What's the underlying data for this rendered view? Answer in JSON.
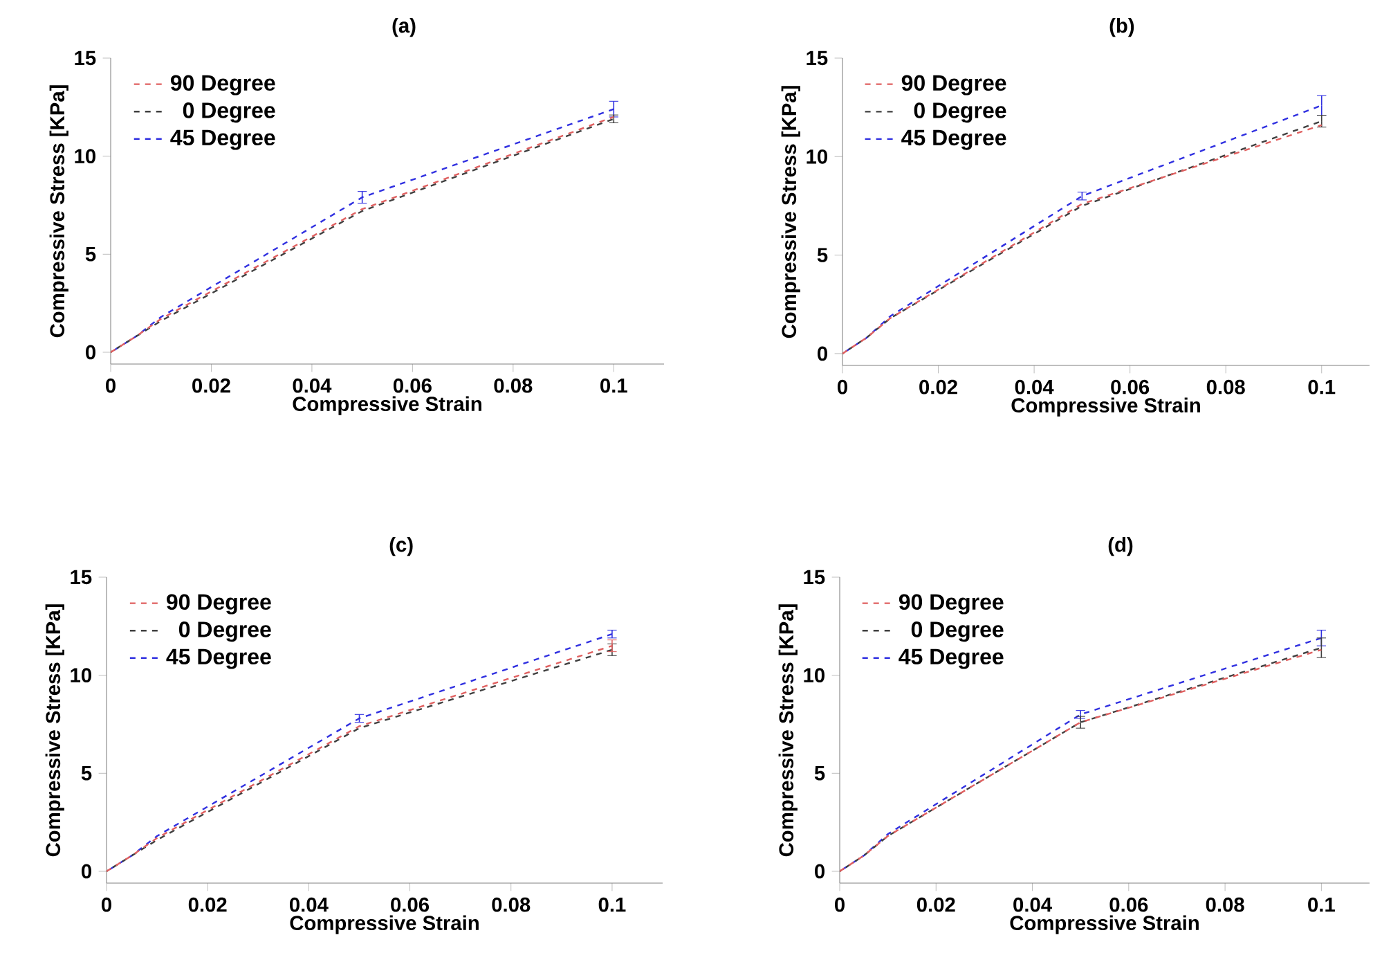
{
  "chart_data": [
    {
      "type": "line",
      "title": "(a)",
      "xlabel": "Compressive Strain",
      "ylabel": "Compressive Stress [KPa]",
      "x": [
        0,
        0.005,
        0.01,
        0.05,
        0.1
      ],
      "xlim": [
        0,
        0.11
      ],
      "xticks": [
        0,
        0.02,
        0.04,
        0.06,
        0.08,
        0.1
      ],
      "ylim": [
        -0.6,
        15
      ],
      "yticks": [
        0,
        5,
        10,
        15
      ],
      "legend": "top left",
      "line_style": "dashed",
      "marker": "none",
      "grid": false,
      "series": [
        {
          "name": "90 Degree",
          "color": "#e06060",
          "values": [
            0,
            0.8,
            1.7,
            7.3,
            12.0
          ]
        },
        {
          "name": "0 Degree",
          "color": "#404040",
          "values": [
            0,
            0.8,
            1.6,
            7.2,
            11.9
          ],
          "errors": [
            null,
            null,
            null,
            null,
            0.2
          ]
        },
        {
          "name": "45 Degree",
          "color": "#3030e0",
          "values": [
            0,
            0.8,
            1.8,
            7.9,
            12.4
          ],
          "errors": [
            null,
            null,
            null,
            0.3,
            0.4
          ]
        }
      ]
    },
    {
      "type": "line",
      "title": "(b)",
      "xlabel": "Compressive Strain",
      "ylabel": "Compressive Stress [KPa]",
      "x": [
        0,
        0.005,
        0.01,
        0.05,
        0.1
      ],
      "xlim": [
        0,
        0.11
      ],
      "xticks": [
        0,
        0.02,
        0.04,
        0.06,
        0.08,
        0.1
      ],
      "ylim": [
        -0.6,
        15
      ],
      "yticks": [
        0,
        5,
        10,
        15
      ],
      "legend": "top left",
      "line_style": "dashed",
      "marker": "none",
      "grid": false,
      "series": [
        {
          "name": "90 Degree",
          "color": "#e06060",
          "values": [
            0,
            0.8,
            1.8,
            7.6,
            11.6
          ]
        },
        {
          "name": "0 Degree",
          "color": "#404040",
          "values": [
            0,
            0.8,
            1.8,
            7.5,
            11.8
          ],
          "errors": [
            null,
            null,
            null,
            null,
            0.3
          ]
        },
        {
          "name": "45 Degree",
          "color": "#3030e0",
          "values": [
            0,
            0.8,
            1.9,
            8.0,
            12.6
          ],
          "errors": [
            null,
            null,
            null,
            0.2,
            0.5
          ]
        }
      ]
    },
    {
      "type": "line",
      "title": "(c)",
      "xlabel": "Compressive Strain",
      "ylabel": "Compressive Stress [KPa]",
      "x": [
        0,
        0.005,
        0.01,
        0.05,
        0.1
      ],
      "xlim": [
        0,
        0.11
      ],
      "xticks": [
        0,
        0.02,
        0.04,
        0.06,
        0.08,
        0.1
      ],
      "ylim": [
        -0.6,
        15
      ],
      "yticks": [
        0,
        5,
        10,
        15
      ],
      "legend": "top left",
      "line_style": "dashed",
      "marker": "none",
      "grid": false,
      "series": [
        {
          "name": "90 Degree",
          "color": "#e06060",
          "values": [
            0,
            0.8,
            1.7,
            7.4,
            11.5
          ],
          "errors": [
            null,
            null,
            null,
            null,
            0.3
          ]
        },
        {
          "name": "0 Degree",
          "color": "#404040",
          "values": [
            0,
            0.8,
            1.6,
            7.3,
            11.3
          ],
          "errors": [
            null,
            null,
            null,
            null,
            0.3
          ]
        },
        {
          "name": "45 Degree",
          "color": "#3030e0",
          "values": [
            0,
            0.8,
            1.8,
            7.8,
            12.1
          ],
          "errors": [
            null,
            null,
            null,
            0.2,
            0.2
          ]
        }
      ]
    },
    {
      "type": "line",
      "title": "(d)",
      "xlabel": "Compressive Strain",
      "ylabel": "Compressive Stress [KPa]",
      "x": [
        0,
        0.005,
        0.01,
        0.05,
        0.1
      ],
      "xlim": [
        0,
        0.11
      ],
      "xticks": [
        0,
        0.02,
        0.04,
        0.06,
        0.08,
        0.1
      ],
      "ylim": [
        -0.6,
        15
      ],
      "yticks": [
        0,
        5,
        10,
        15
      ],
      "legend": "top left",
      "line_style": "dashed",
      "marker": "none",
      "grid": false,
      "series": [
        {
          "name": "90 Degree",
          "color": "#e06060",
          "values": [
            0,
            0.8,
            1.8,
            7.6,
            11.3
          ]
        },
        {
          "name": "0 Degree",
          "color": "#404040",
          "values": [
            0,
            0.8,
            1.8,
            7.6,
            11.4
          ],
          "errors": [
            null,
            null,
            null,
            0.3,
            0.5
          ]
        },
        {
          "name": "45 Degree",
          "color": "#3030e0",
          "values": [
            0,
            0.8,
            1.9,
            8.0,
            11.9
          ],
          "errors": [
            null,
            null,
            null,
            0.2,
            0.4
          ]
        }
      ]
    }
  ]
}
